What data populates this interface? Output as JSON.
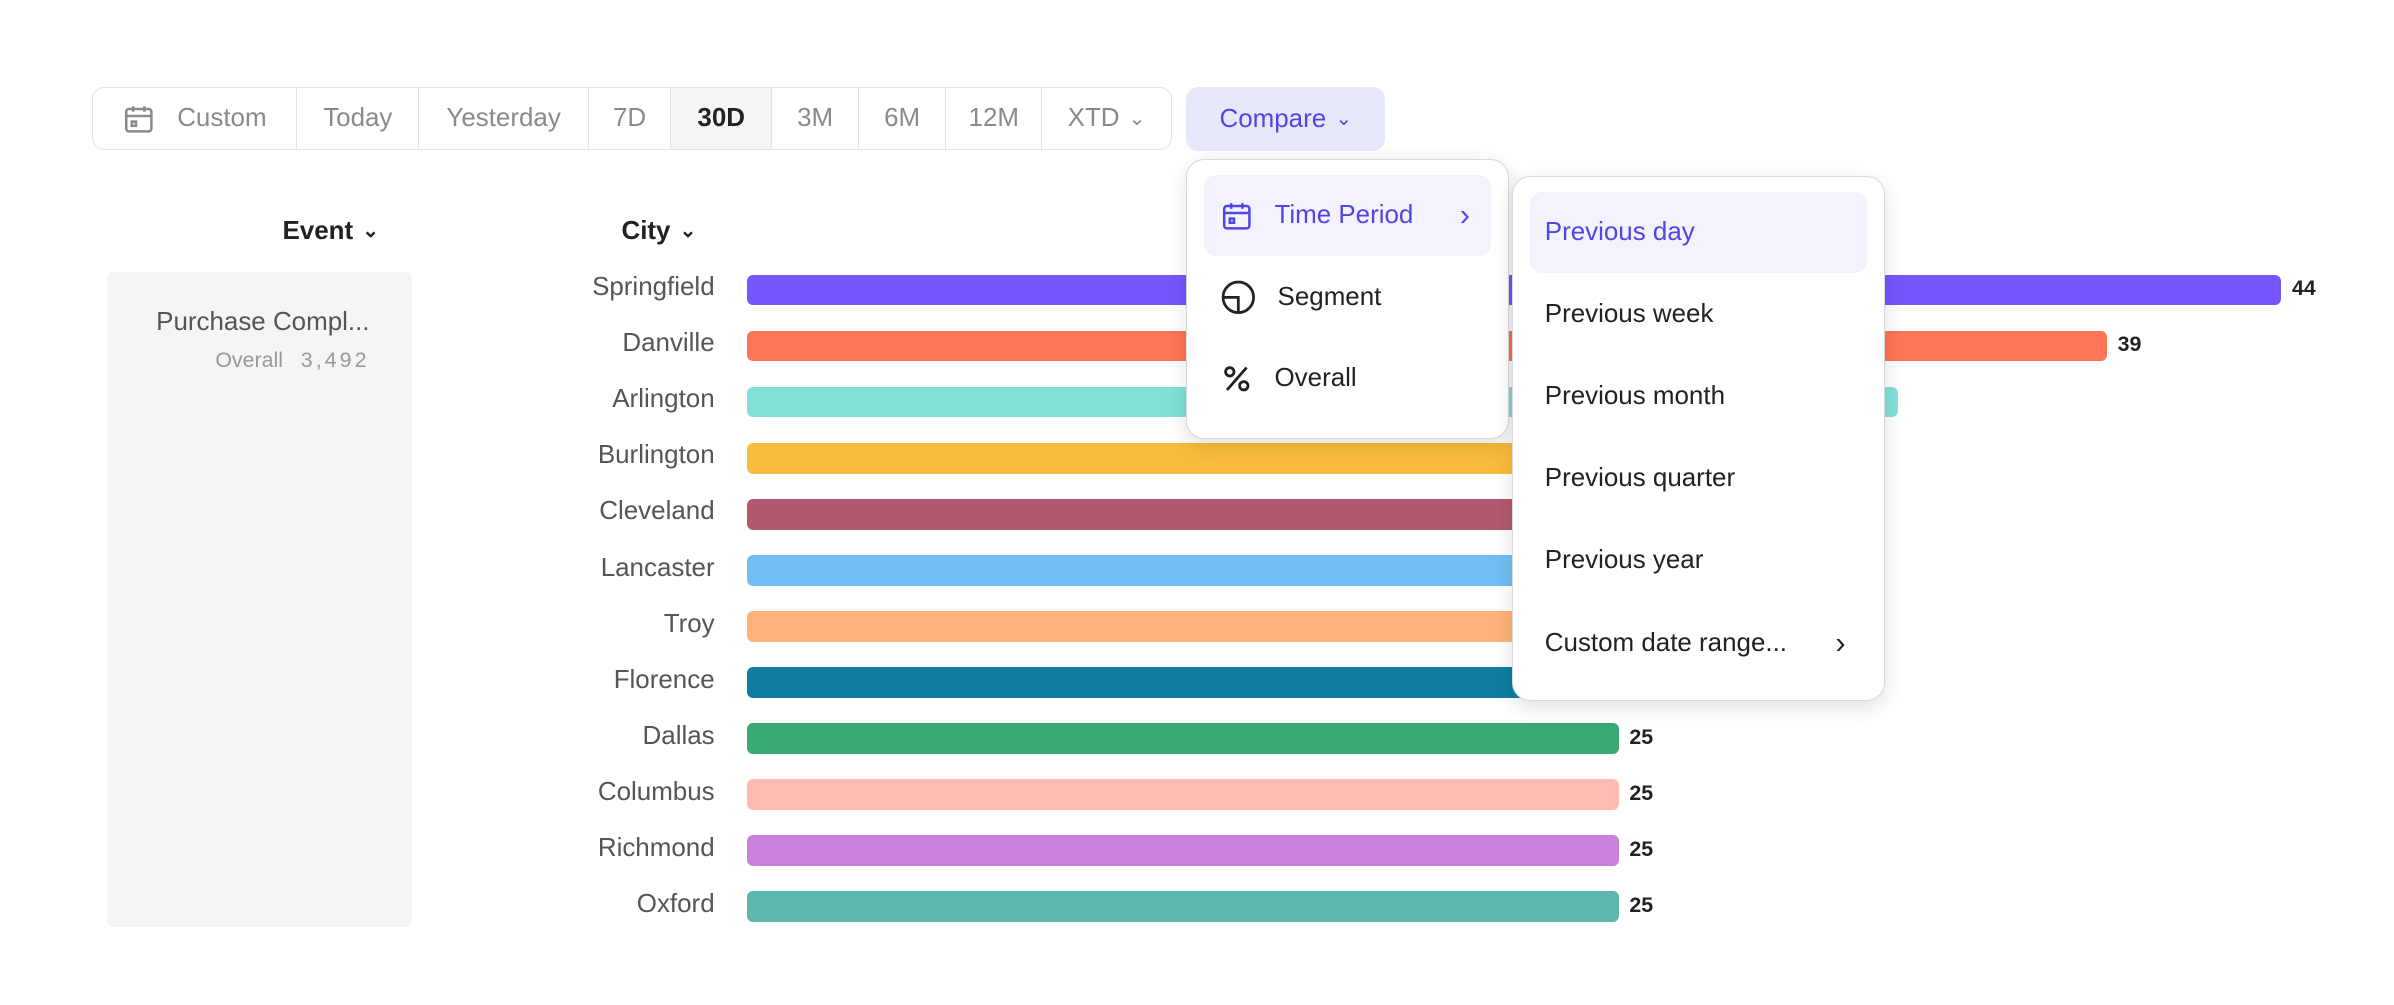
{
  "toolbar": {
    "ranges": [
      {
        "label": "Custom",
        "icon": "calendar-icon",
        "w": 134
      },
      {
        "label": "Today",
        "w": 80
      },
      {
        "label": "Yesterday",
        "w": 111
      },
      {
        "label": "7D",
        "w": 54
      },
      {
        "label": "30D",
        "w": 66,
        "active": true
      },
      {
        "label": "3M",
        "w": 57
      },
      {
        "label": "6M",
        "w": 57
      },
      {
        "label": "12M",
        "w": 63
      },
      {
        "label": "XTD",
        "w": 84,
        "dropdown": true
      }
    ],
    "compare_label": "Compare"
  },
  "headers": {
    "event": "Event",
    "city": "City"
  },
  "event_panel": {
    "name": "Purchase Compl...",
    "overall_label": "Overall",
    "overall_value": "3,492"
  },
  "chart_data": {
    "type": "bar",
    "orientation": "horizontal",
    "categories": [
      "Springfield",
      "Danville",
      "Arlington",
      "Burlington",
      "Cleveland",
      "Lancaster",
      "Troy",
      "Florence",
      "Dallas",
      "Columbus",
      "Richmond",
      "Oxford"
    ],
    "values": [
      44,
      39,
      null,
      null,
      null,
      null,
      null,
      null,
      25,
      25,
      25,
      25
    ],
    "colors": [
      "#7856ff",
      "#ff7557",
      "#80e1d9",
      "#f8bc3b",
      "#b2596e",
      "#72bef4",
      "#ffb27a",
      "#0d7ea0",
      "#3ba974",
      "#febbb2",
      "#cb80dc",
      "#5cb7af"
    ]
  },
  "compare_menu": {
    "items": [
      {
        "label": "Time Period",
        "icon": "calendar-icon",
        "highlighted": true,
        "submenu": true
      },
      {
        "label": "Segment",
        "icon": "segment-pie-icon"
      },
      {
        "label": "Overall",
        "icon": "percent-icon"
      }
    ]
  },
  "time_period_menu": {
    "items": [
      {
        "label": "Previous day",
        "highlighted": true
      },
      {
        "label": "Previous week"
      },
      {
        "label": "Previous month"
      },
      {
        "label": "Previous quarter"
      },
      {
        "label": "Previous year"
      },
      {
        "label": "Custom date range...",
        "submenu": true
      }
    ]
  },
  "accent": "#5046e5"
}
